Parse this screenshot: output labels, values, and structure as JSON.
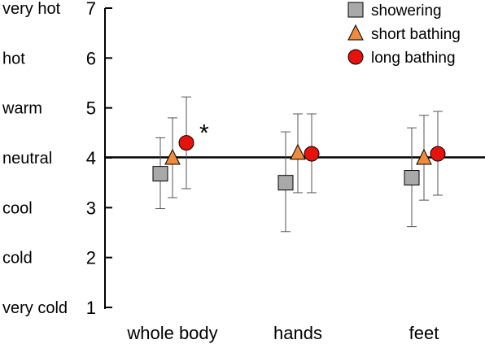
{
  "chart_data": {
    "type": "scatter",
    "title": "",
    "xlabel": "",
    "ylabel": "",
    "categories": [
      "whole body",
      "hands",
      "feet"
    ],
    "ylim": [
      1,
      7
    ],
    "y_ticks": [
      1,
      2,
      3,
      4,
      5,
      6,
      7
    ],
    "y_tick_descriptors": [
      "very cold",
      "cold",
      "cool",
      "neutral",
      "warm",
      "hot",
      "very hot"
    ],
    "reference_line": 4,
    "grid": false,
    "legend_position": "top-right",
    "significance_marker": {
      "category": "whole body",
      "series": "long bathing",
      "text": "*"
    },
    "series": [
      {
        "name": "showering",
        "marker": "square",
        "color": "#a9a9a9",
        "values": [
          3.68,
          3.5,
          3.6
        ],
        "error_low": [
          2.98,
          2.52,
          2.62
        ],
        "error_high": [
          4.4,
          4.52,
          4.6
        ]
      },
      {
        "name": "short bathing",
        "marker": "triangle",
        "color": "#f08a3c",
        "values": [
          4.0,
          4.1,
          4.0
        ],
        "error_low": [
          3.2,
          3.3,
          3.15
        ],
        "error_high": [
          4.8,
          4.88,
          4.85
        ]
      },
      {
        "name": "long bathing",
        "marker": "circle",
        "color": "#e8120c",
        "values": [
          4.3,
          4.08,
          4.08
        ],
        "error_low": [
          3.38,
          3.3,
          3.25
        ],
        "error_high": [
          5.22,
          4.88,
          4.93
        ]
      }
    ]
  }
}
